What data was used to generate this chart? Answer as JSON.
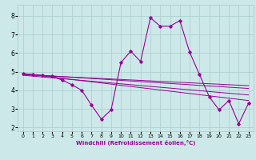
{
  "xlabel": "Windchill (Refroidissement éolien,°C)",
  "bg_color": "#cce8e8",
  "line_color": "#990099",
  "grid_color": "#aacccc",
  "xlim": [
    -0.5,
    23.5
  ],
  "ylim": [
    1.8,
    8.6
  ],
  "xticks": [
    0,
    1,
    2,
    3,
    4,
    5,
    6,
    7,
    8,
    9,
    10,
    11,
    12,
    13,
    14,
    15,
    16,
    17,
    18,
    19,
    20,
    21,
    22,
    23
  ],
  "yticks": [
    2,
    3,
    4,
    5,
    6,
    7,
    8
  ],
  "main_x": [
    0,
    1,
    2,
    3,
    4,
    5,
    6,
    7,
    8,
    9,
    10,
    11,
    12,
    13,
    14,
    15,
    16,
    17,
    18,
    19,
    20,
    21,
    22,
    23
  ],
  "main_y": [
    4.9,
    4.85,
    4.8,
    4.75,
    4.55,
    4.3,
    4.0,
    3.2,
    2.45,
    2.95,
    5.5,
    6.1,
    5.55,
    7.9,
    7.45,
    7.45,
    7.75,
    6.05,
    4.85,
    3.65,
    2.95,
    3.45,
    2.2,
    3.3
  ],
  "reg_lines": [
    {
      "x": [
        0,
        23
      ],
      "y": [
        4.9,
        3.45
      ]
    },
    {
      "x": [
        0,
        23
      ],
      "y": [
        4.87,
        4.1
      ]
    },
    {
      "x": [
        0,
        23
      ],
      "y": [
        4.84,
        4.25
      ]
    },
    {
      "x": [
        0,
        23
      ],
      "y": [
        4.81,
        3.75
      ]
    }
  ]
}
